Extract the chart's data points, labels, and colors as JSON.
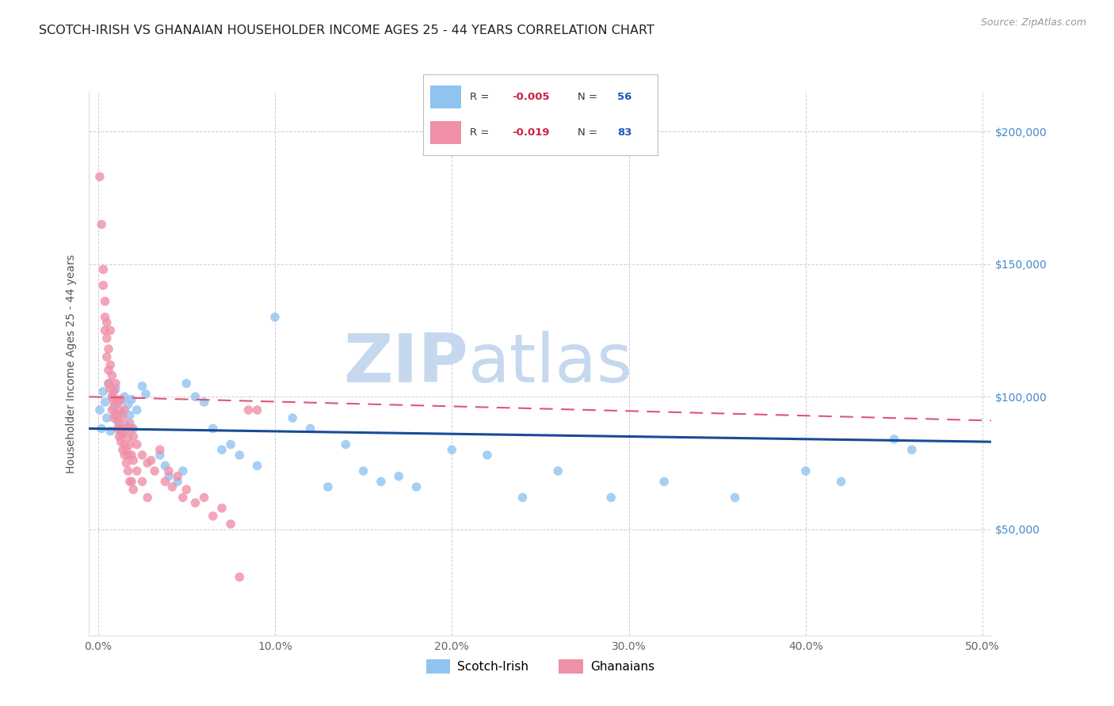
{
  "title": "SCOTCH-IRISH VS GHANAIAN HOUSEHOLDER INCOME AGES 25 - 44 YEARS CORRELATION CHART",
  "source": "Source: ZipAtlas.com",
  "xlabel_ticks": [
    "0.0%",
    "10.0%",
    "20.0%",
    "30.0%",
    "40.0%",
    "50.0%"
  ],
  "xlabel_vals": [
    0.0,
    0.1,
    0.2,
    0.3,
    0.4,
    0.5
  ],
  "ylabel_ticks": [
    "$50,000",
    "$100,000",
    "$150,000",
    "$200,000"
  ],
  "ylabel_vals": [
    50000,
    100000,
    150000,
    200000
  ],
  "xlim": [
    -0.005,
    0.505
  ],
  "ylim": [
    10000,
    215000
  ],
  "scotch_irish_color": "#90c4f0",
  "ghanaians_color": "#f090a8",
  "trend_scotch_color": "#1a4a99",
  "trend_ghanaian_color": "#e05575",
  "scotch_irish_points": [
    [
      0.001,
      95000
    ],
    [
      0.002,
      88000
    ],
    [
      0.003,
      102000
    ],
    [
      0.004,
      98000
    ],
    [
      0.005,
      92000
    ],
    [
      0.006,
      105000
    ],
    [
      0.007,
      87000
    ],
    [
      0.008,
      100000
    ],
    [
      0.009,
      96000
    ],
    [
      0.01,
      103000
    ],
    [
      0.011,
      91000
    ],
    [
      0.012,
      98000
    ],
    [
      0.013,
      86000
    ],
    [
      0.014,
      94000
    ],
    [
      0.015,
      100000
    ],
    [
      0.016,
      89000
    ],
    [
      0.017,
      97000
    ],
    [
      0.018,
      93000
    ],
    [
      0.019,
      99000
    ],
    [
      0.02,
      88000
    ],
    [
      0.022,
      95000
    ],
    [
      0.025,
      104000
    ],
    [
      0.027,
      101000
    ],
    [
      0.035,
      78000
    ],
    [
      0.038,
      74000
    ],
    [
      0.04,
      70000
    ],
    [
      0.045,
      68000
    ],
    [
      0.048,
      72000
    ],
    [
      0.05,
      105000
    ],
    [
      0.055,
      100000
    ],
    [
      0.06,
      98000
    ],
    [
      0.065,
      88000
    ],
    [
      0.07,
      80000
    ],
    [
      0.075,
      82000
    ],
    [
      0.08,
      78000
    ],
    [
      0.09,
      74000
    ],
    [
      0.1,
      130000
    ],
    [
      0.11,
      92000
    ],
    [
      0.12,
      88000
    ],
    [
      0.13,
      66000
    ],
    [
      0.14,
      82000
    ],
    [
      0.15,
      72000
    ],
    [
      0.16,
      68000
    ],
    [
      0.17,
      70000
    ],
    [
      0.18,
      66000
    ],
    [
      0.2,
      80000
    ],
    [
      0.22,
      78000
    ],
    [
      0.24,
      62000
    ],
    [
      0.26,
      72000
    ],
    [
      0.29,
      62000
    ],
    [
      0.32,
      68000
    ],
    [
      0.36,
      62000
    ],
    [
      0.4,
      72000
    ],
    [
      0.42,
      68000
    ],
    [
      0.45,
      84000
    ],
    [
      0.46,
      80000
    ]
  ],
  "ghanaian_points": [
    [
      0.001,
      183000
    ],
    [
      0.002,
      165000
    ],
    [
      0.003,
      148000
    ],
    [
      0.003,
      142000
    ],
    [
      0.004,
      136000
    ],
    [
      0.004,
      130000
    ],
    [
      0.004,
      125000
    ],
    [
      0.005,
      128000
    ],
    [
      0.005,
      122000
    ],
    [
      0.005,
      115000
    ],
    [
      0.006,
      118000
    ],
    [
      0.006,
      110000
    ],
    [
      0.006,
      105000
    ],
    [
      0.007,
      125000
    ],
    [
      0.007,
      112000
    ],
    [
      0.007,
      103000
    ],
    [
      0.008,
      108000
    ],
    [
      0.008,
      100000
    ],
    [
      0.008,
      95000
    ],
    [
      0.009,
      102000
    ],
    [
      0.009,
      98000
    ],
    [
      0.009,
      92000
    ],
    [
      0.01,
      105000
    ],
    [
      0.01,
      99000
    ],
    [
      0.01,
      93000
    ],
    [
      0.011,
      98000
    ],
    [
      0.011,
      93000
    ],
    [
      0.011,
      88000
    ],
    [
      0.012,
      95000
    ],
    [
      0.012,
      90000
    ],
    [
      0.012,
      85000
    ],
    [
      0.013,
      99000
    ],
    [
      0.013,
      88000
    ],
    [
      0.013,
      83000
    ],
    [
      0.014,
      92000
    ],
    [
      0.014,
      86000
    ],
    [
      0.014,
      80000
    ],
    [
      0.015,
      95000
    ],
    [
      0.015,
      82000
    ],
    [
      0.015,
      78000
    ],
    [
      0.016,
      88000
    ],
    [
      0.016,
      80000
    ],
    [
      0.016,
      75000
    ],
    [
      0.017,
      85000
    ],
    [
      0.017,
      78000
    ],
    [
      0.017,
      72000
    ],
    [
      0.018,
      90000
    ],
    [
      0.018,
      82000
    ],
    [
      0.018,
      68000
    ],
    [
      0.019,
      88000
    ],
    [
      0.019,
      78000
    ],
    [
      0.019,
      68000
    ],
    [
      0.02,
      85000
    ],
    [
      0.02,
      76000
    ],
    [
      0.02,
      65000
    ],
    [
      0.022,
      82000
    ],
    [
      0.022,
      72000
    ],
    [
      0.025,
      78000
    ],
    [
      0.025,
      68000
    ],
    [
      0.028,
      75000
    ],
    [
      0.028,
      62000
    ],
    [
      0.03,
      76000
    ],
    [
      0.032,
      72000
    ],
    [
      0.035,
      80000
    ],
    [
      0.038,
      68000
    ],
    [
      0.04,
      72000
    ],
    [
      0.042,
      66000
    ],
    [
      0.045,
      70000
    ],
    [
      0.048,
      62000
    ],
    [
      0.05,
      65000
    ],
    [
      0.055,
      60000
    ],
    [
      0.06,
      62000
    ],
    [
      0.065,
      55000
    ],
    [
      0.07,
      58000
    ],
    [
      0.075,
      52000
    ],
    [
      0.08,
      32000
    ],
    [
      0.085,
      95000
    ],
    [
      0.09,
      95000
    ]
  ],
  "background_color": "#ffffff",
  "grid_color": "#ccccdd",
  "watermark_zip": "ZIP",
  "watermark_atlas": "atlas",
  "watermark_color": "#c5d8ee",
  "ylabel_right_color": "#4488cc",
  "title_fontsize": 11.5,
  "source_fontsize": 9,
  "legend_R_color": "#cc2244",
  "legend_N_color": "#2255bb"
}
